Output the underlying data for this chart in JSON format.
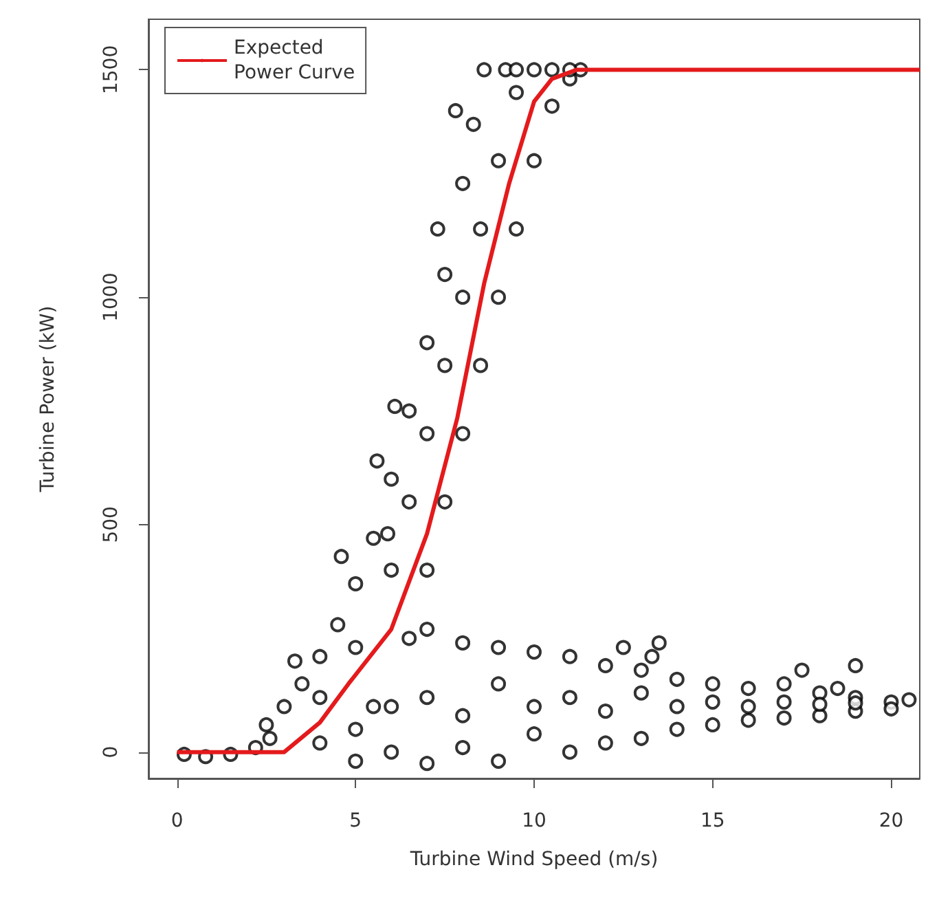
{
  "chart_data": {
    "type": "scatter",
    "xlabel": "Turbine Wind Speed (m/s)",
    "ylabel": "Turbine Power (kW)",
    "xlim": [
      -0.8,
      20.8
    ],
    "ylim": [
      -58,
      1611
    ],
    "xticks": [
      0,
      5,
      10,
      15,
      20
    ],
    "yticks": [
      0,
      500,
      1000,
      1500
    ],
    "grid": false,
    "legend": "top left",
    "marker": "circle",
    "series": [
      {
        "color": "#000000",
        "x": [
          0.2,
          0.8,
          1.5,
          2.2,
          2.6,
          2.5,
          3,
          3.5,
          4,
          4.5,
          5,
          5.5,
          6,
          6.5,
          7,
          7.5,
          8,
          8.3,
          8.6,
          4.6,
          5.6,
          6.1,
          7.3,
          7.8,
          5.9,
          3.3,
          4,
          5,
          6,
          6.5,
          7,
          7.5,
          8,
          8.5,
          9,
          9.5,
          9.2,
          5.5,
          6.5,
          7,
          7.5,
          8,
          8.5,
          9,
          9.5,
          10,
          10.5,
          11,
          11.3,
          9.5,
          10,
          10.5,
          11,
          7,
          8,
          9,
          10,
          11,
          12,
          13,
          14,
          15,
          16,
          17,
          18,
          19,
          20,
          20.5,
          12.5,
          13.3,
          13.5,
          17.5,
          19,
          18.5,
          5,
          7,
          9,
          11,
          12,
          13,
          14,
          15,
          16,
          17,
          18,
          19,
          20,
          5,
          6,
          7,
          8,
          9,
          10,
          11,
          12,
          13,
          14,
          15,
          16,
          17,
          18,
          19,
          4,
          6,
          8,
          10
        ],
        "values": [
          -5,
          -10,
          -5,
          10,
          30,
          60,
          100,
          150,
          210,
          280,
          370,
          470,
          600,
          750,
          900,
          1050,
          1250,
          1380,
          1500,
          430,
          640,
          760,
          1150,
          1410,
          480,
          200,
          120,
          230,
          400,
          550,
          700,
          850,
          1000,
          1150,
          1300,
          1450,
          1500,
          100,
          250,
          400,
          550,
          700,
          850,
          1000,
          1150,
          1300,
          1420,
          1480,
          1500,
          1500,
          1500,
          1500,
          1500,
          270,
          240,
          230,
          220,
          210,
          190,
          180,
          160,
          150,
          140,
          150,
          130,
          120,
          110,
          115,
          230,
          210,
          240,
          180,
          190,
          140,
          -20,
          -25,
          -20,
          0,
          20,
          30,
          50,
          60,
          70,
          75,
          80,
          90,
          95,
          50,
          100,
          120,
          80,
          150,
          100,
          120,
          90,
          130,
          100,
          110,
          100,
          110,
          105,
          108,
          20,
          0,
          10,
          40
        ]
      },
      {
        "type": "line",
        "name": "Expected\nPower Curve",
        "color": "#e41a1c",
        "line_style": "solid",
        "marker": "none",
        "x": [
          0,
          3,
          4,
          4.8,
          6,
          7,
          7.85,
          8.6,
          9.3,
          10,
          10.5,
          11.2,
          20.8
        ],
        "values": [
          0,
          0,
          65,
          150,
          270,
          480,
          735,
          1030,
          1250,
          1430,
          1480,
          1500,
          1500
        ]
      }
    ]
  }
}
